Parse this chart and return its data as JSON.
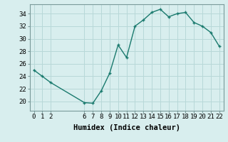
{
  "x": [
    0,
    1,
    2,
    6,
    7,
    8,
    9,
    10,
    11,
    12,
    13,
    14,
    15,
    16,
    17,
    18,
    19,
    20,
    21,
    22
  ],
  "y": [
    25,
    24,
    23,
    19.8,
    19.7,
    21.7,
    24.5,
    29,
    27,
    32,
    33,
    34.2,
    34.7,
    33.5,
    34,
    34.2,
    32.6,
    32,
    31,
    28.8
  ],
  "line_color": "#1a7a6e",
  "marker_color": "#1a7a6e",
  "bg_color": "#d8eeee",
  "grid_color": "#b8d8d8",
  "xlabel": "Humidex (Indice chaleur)",
  "xlim": [
    -0.5,
    22.5
  ],
  "ylim": [
    18.5,
    35.5
  ],
  "yticks": [
    20,
    22,
    24,
    26,
    28,
    30,
    32,
    34
  ],
  "xticks": [
    0,
    1,
    2,
    6,
    7,
    8,
    9,
    10,
    11,
    12,
    13,
    14,
    15,
    16,
    17,
    18,
    19,
    20,
    21,
    22
  ],
  "xlabel_fontsize": 7.5,
  "tick_fontsize": 6.5,
  "line_width": 1.0,
  "marker_size": 2.5
}
